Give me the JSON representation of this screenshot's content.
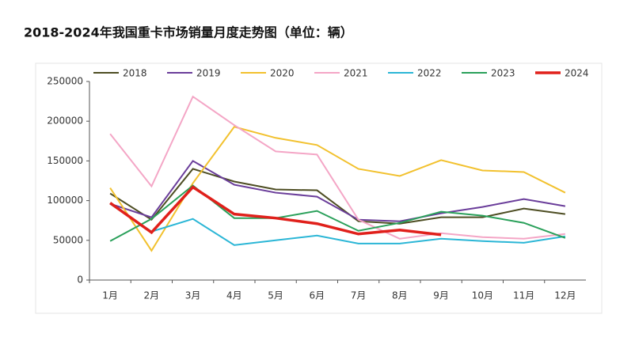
{
  "chart_data": {
    "type": "line",
    "title": "2018-2024年我国重卡市场销量月度走势图（单位：辆）",
    "categories": [
      "1月",
      "2月",
      "3月",
      "4月",
      "5月",
      "6月",
      "7月",
      "8月",
      "9月",
      "10月",
      "11月",
      "12月"
    ],
    "series": [
      {
        "name": "2018",
        "color": "#4d4d22",
        "values": [
          109000,
          76000,
          140000,
          124000,
          114000,
          113000,
          74000,
          71000,
          79000,
          79000,
          90000,
          83000
        ]
      },
      {
        "name": "2019",
        "color": "#6a3d9a",
        "values": [
          96000,
          79000,
          150000,
          120000,
          110000,
          105000,
          76000,
          74000,
          84000,
          92000,
          102000,
          93000
        ]
      },
      {
        "name": "2020",
        "color": "#f2c12e",
        "values": [
          116000,
          37000,
          122000,
          193000,
          179000,
          170000,
          140000,
          131000,
          151000,
          138000,
          136000,
          110000
        ]
      },
      {
        "name": "2021",
        "color": "#f4a6c6",
        "values": [
          184000,
          118000,
          231000,
          195000,
          162000,
          158000,
          76000,
          52000,
          59000,
          54000,
          52000,
          58000
        ]
      },
      {
        "name": "2022",
        "color": "#2bb6d6",
        "values": [
          96000,
          61000,
          77000,
          44000,
          50000,
          56000,
          46000,
          46000,
          52000,
          49000,
          47000,
          55000
        ]
      },
      {
        "name": "2023",
        "color": "#2aa05a",
        "values": [
          49000,
          77000,
          119000,
          78000,
          78000,
          87000,
          62000,
          72000,
          86000,
          81000,
          72000,
          53000
        ]
      },
      {
        "name": "2024",
        "color": "#e0201b",
        "values": [
          97000,
          60000,
          117000,
          83000,
          78000,
          71000,
          58000,
          63000,
          57000,
          null,
          null,
          null
        ]
      }
    ],
    "ylim": [
      0,
      250000
    ],
    "yticks": [
      0,
      50000,
      100000,
      150000,
      200000,
      250000
    ]
  }
}
